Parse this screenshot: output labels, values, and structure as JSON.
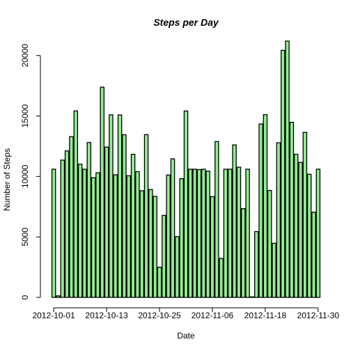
{
  "chart_data": {
    "type": "bar",
    "title": "Steps per Day",
    "xlabel": "Date",
    "ylabel": "Number of Steps",
    "ylim": [
      0,
      21194
    ],
    "yticks": [
      0,
      5000,
      10000,
      15000,
      20000
    ],
    "xtick_labels": [
      {
        "index": 0,
        "label": "2012-10-01"
      },
      {
        "index": 12,
        "label": "2012-10-13"
      },
      {
        "index": 24,
        "label": "2012-10-25"
      },
      {
        "index": 36,
        "label": "2012-11-06"
      },
      {
        "index": 48,
        "label": "2012-11-18"
      },
      {
        "index": 60,
        "label": "2012-11-30"
      }
    ],
    "bar_color": "#90EE90",
    "categories": [
      "2012-10-01",
      "2012-10-02",
      "2012-10-03",
      "2012-10-04",
      "2012-10-05",
      "2012-10-06",
      "2012-10-07",
      "2012-10-08",
      "2012-10-09",
      "2012-10-10",
      "2012-10-11",
      "2012-10-12",
      "2012-10-13",
      "2012-10-14",
      "2012-10-15",
      "2012-10-16",
      "2012-10-17",
      "2012-10-18",
      "2012-10-19",
      "2012-10-20",
      "2012-10-21",
      "2012-10-22",
      "2012-10-23",
      "2012-10-24",
      "2012-10-25",
      "2012-10-26",
      "2012-10-27",
      "2012-10-28",
      "2012-10-29",
      "2012-10-30",
      "2012-10-31",
      "2012-11-01",
      "2012-11-02",
      "2012-11-03",
      "2012-11-04",
      "2012-11-05",
      "2012-11-06",
      "2012-11-07",
      "2012-11-08",
      "2012-11-09",
      "2012-11-10",
      "2012-11-11",
      "2012-11-12",
      "2012-11-13",
      "2012-11-14",
      "2012-11-15",
      "2012-11-16",
      "2012-11-17",
      "2012-11-18",
      "2012-11-19",
      "2012-11-20",
      "2012-11-21",
      "2012-11-22",
      "2012-11-23",
      "2012-11-24",
      "2012-11-25",
      "2012-11-26",
      "2012-11-27",
      "2012-11-28",
      "2012-11-29",
      "2012-11-30"
    ],
    "values": [
      10600,
      126,
      11352,
      12116,
      13294,
      15420,
      11015,
      10600,
      12811,
      9900,
      10304,
      17382,
      12426,
      15098,
      10139,
      15084,
      13452,
      10056,
      11829,
      10395,
      8821,
      13460,
      8918,
      8355,
      2492,
      6778,
      10119,
      11458,
      5018,
      9819,
      15414,
      10600,
      10600,
      10571,
      10600,
      10439,
      8334,
      12883,
      3219,
      10600,
      10600,
      12608,
      10765,
      7336,
      10600,
      41,
      5441,
      14339,
      15110,
      8841,
      4472,
      12787,
      20427,
      21194,
      14478,
      11834,
      11162,
      13646,
      10183,
      7047,
      10600
    ]
  }
}
